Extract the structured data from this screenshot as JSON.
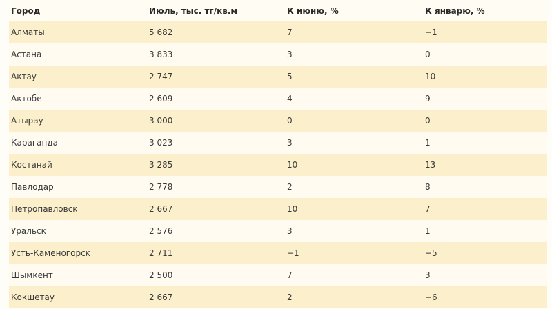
{
  "table": {
    "headers": [
      "Город",
      "Июль, тыс. тг/кв.м",
      "К июню, %",
      "К январю, %"
    ],
    "rows": [
      [
        "Алматы",
        "5 682",
        "7",
        "−1"
      ],
      [
        "Астана",
        "3 833",
        "3",
        "0"
      ],
      [
        "Актау",
        "2 747",
        "5",
        "10"
      ],
      [
        "Актобе",
        "2 609",
        "4",
        "9"
      ],
      [
        "Атырау",
        "3 000",
        "0",
        "0"
      ],
      [
        "Караганда",
        "3 023",
        "3",
        "1"
      ],
      [
        "Костанай",
        "3 285",
        "10",
        "13"
      ],
      [
        "Павлодар",
        "2 778",
        "2",
        "8"
      ],
      [
        "Петропавловск",
        "2 667",
        "10",
        "7"
      ],
      [
        "Уральск",
        "2 576",
        "3",
        "1"
      ],
      [
        "Усть-Каменогорск",
        "2 711",
        "−1",
        "−5"
      ],
      [
        "Шымкент",
        "2 500",
        "7",
        "3"
      ],
      [
        "Кокшетау",
        "2 667",
        "2",
        "−6"
      ]
    ]
  },
  "colors": {
    "stripe": "#fcf0cc",
    "background": "#fffdf8"
  }
}
